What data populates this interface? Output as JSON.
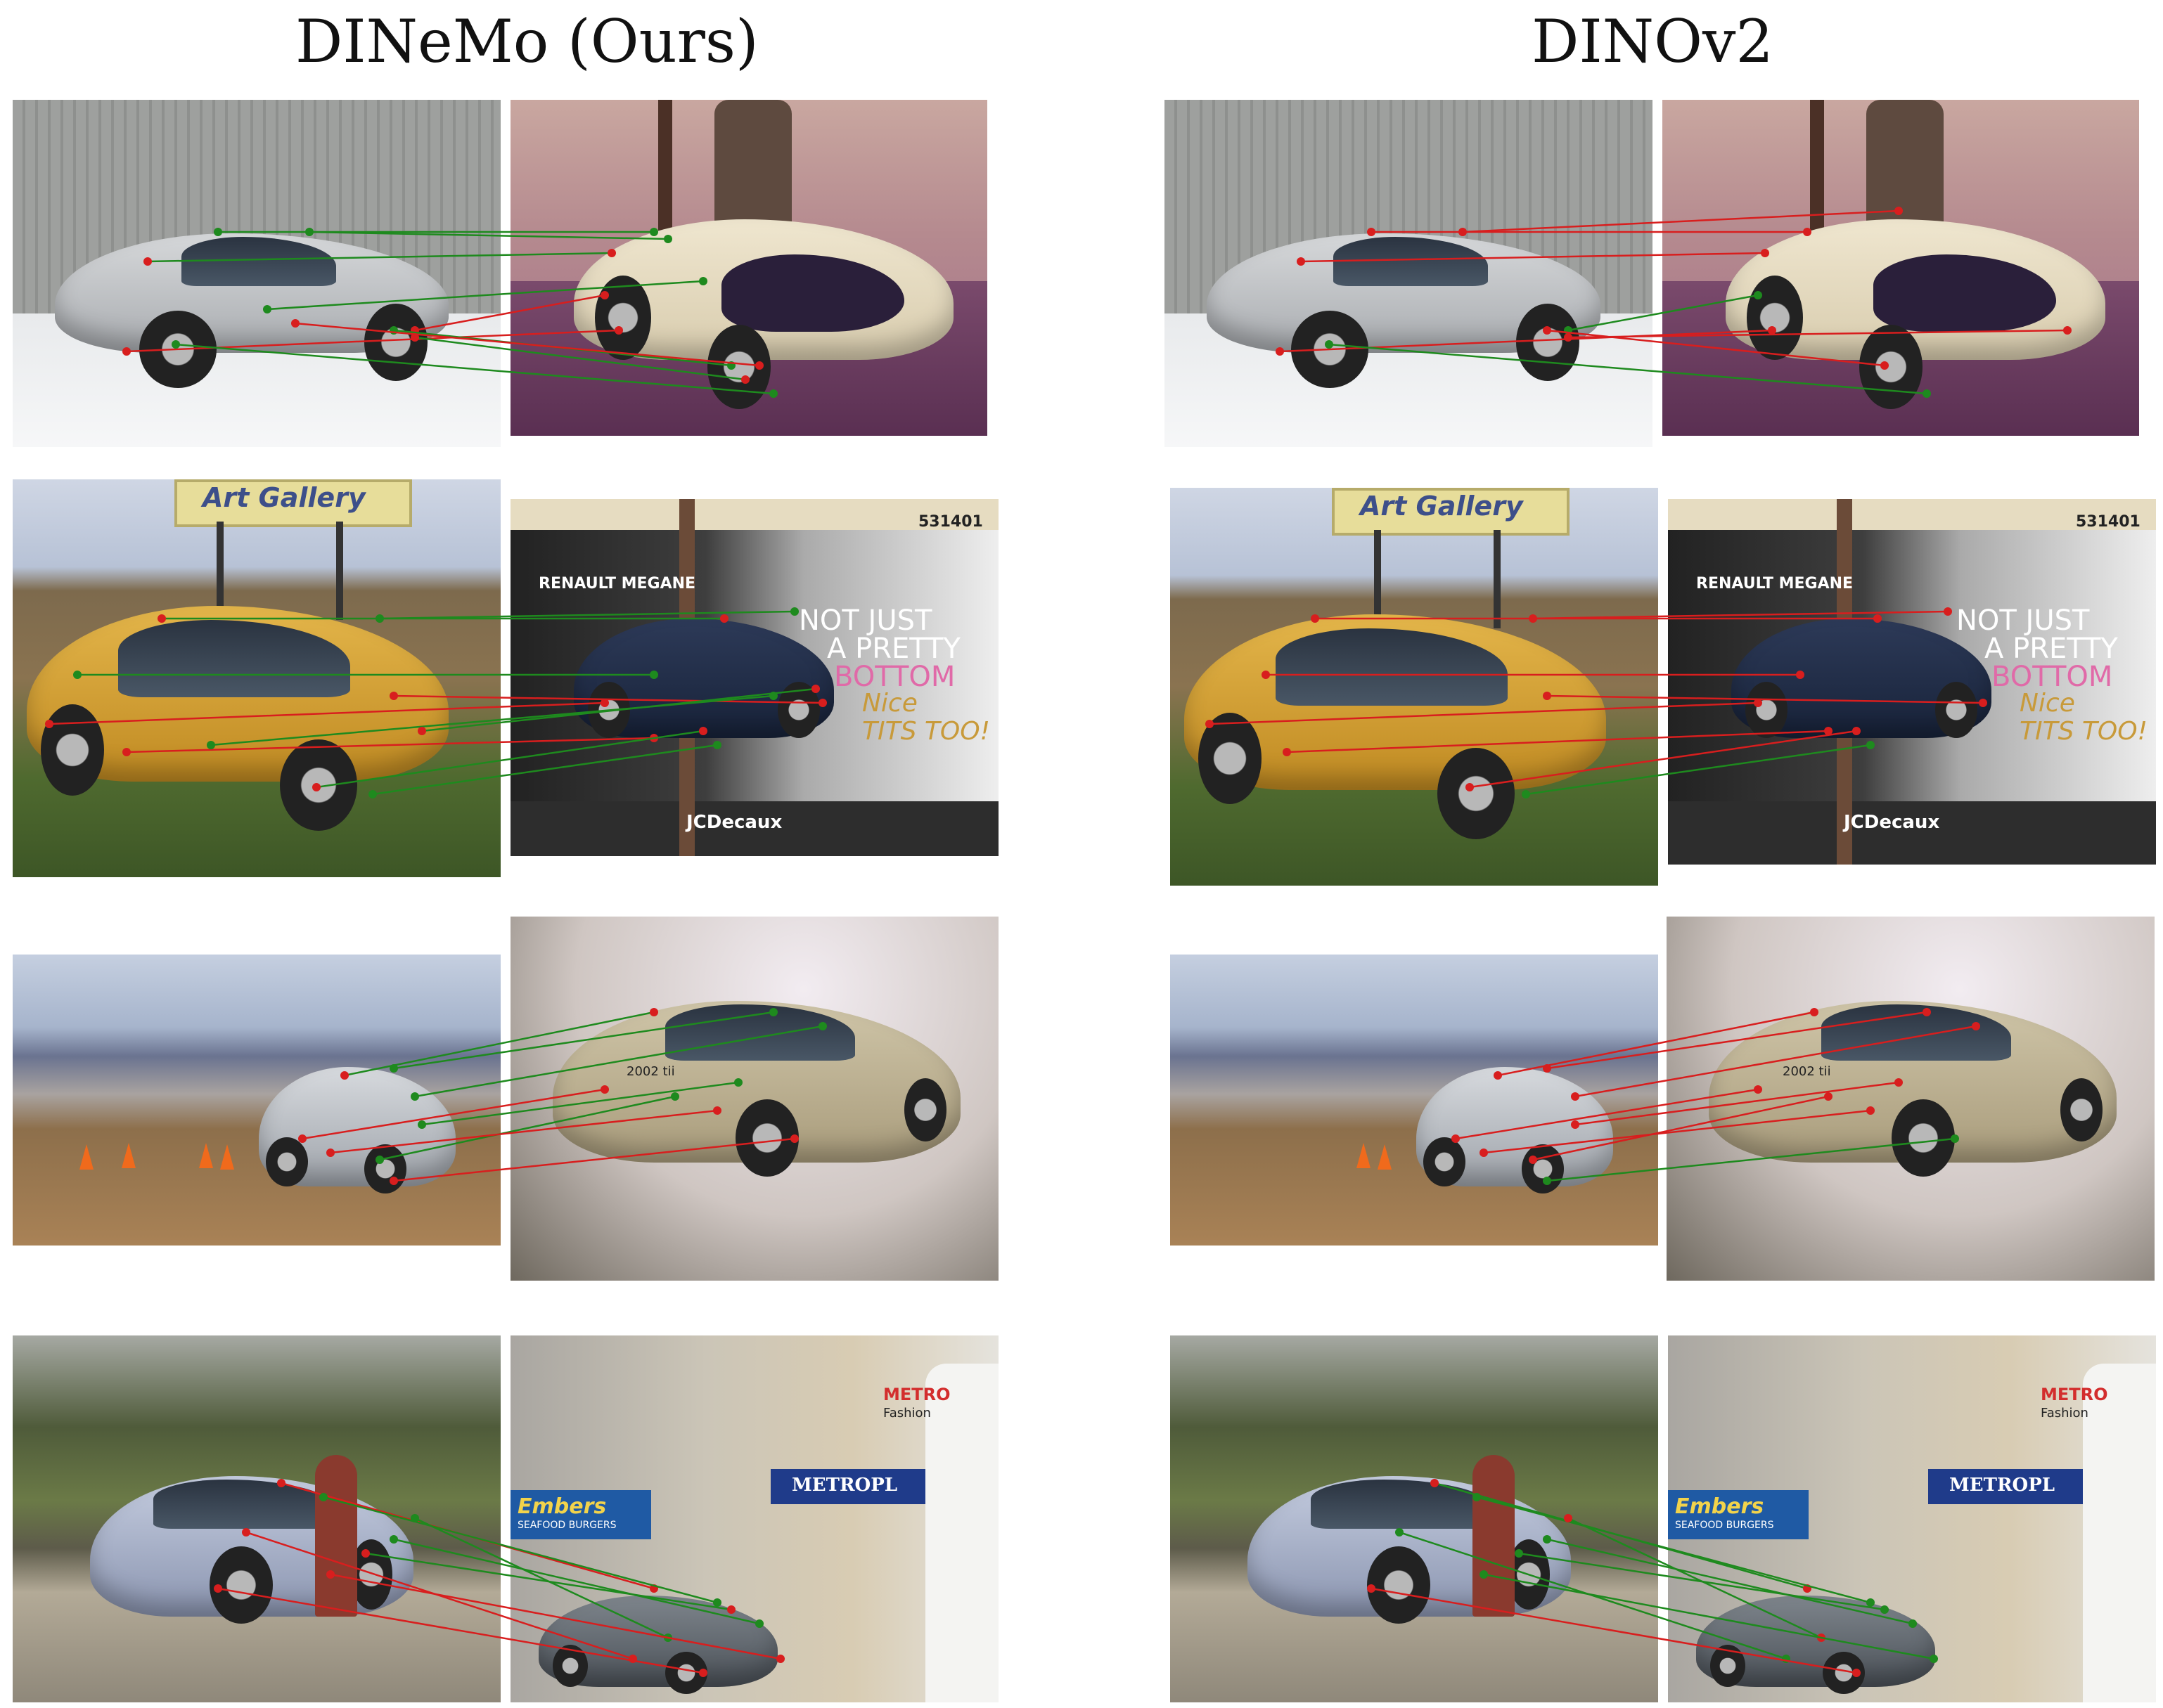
{
  "titles": {
    "left": "DINeMo (Ours)",
    "right": "DINOv2"
  },
  "signage": {
    "renault": "RENAULT MEGANE",
    "slogan_1": "NOT JUST",
    "slogan_2": "A PRETTY",
    "slogan_3": "BOTTOM",
    "graffiti_1": "Nice",
    "graffiti_2": "TITS TOO!",
    "jcdecaux": "JCDecaux",
    "billboard_id": "531401",
    "art_gallery": "Art Gallery",
    "embers": "Embers",
    "metro": "METROPL",
    "metro_sign": "METRO",
    "fashion": "Fashion",
    "seafood": "SEAFOOD BURGERS",
    "plate": "2002 tii"
  },
  "colors": {
    "match_correct": "#1e8a1e",
    "match_wrong": "#d81e1e"
  }
}
